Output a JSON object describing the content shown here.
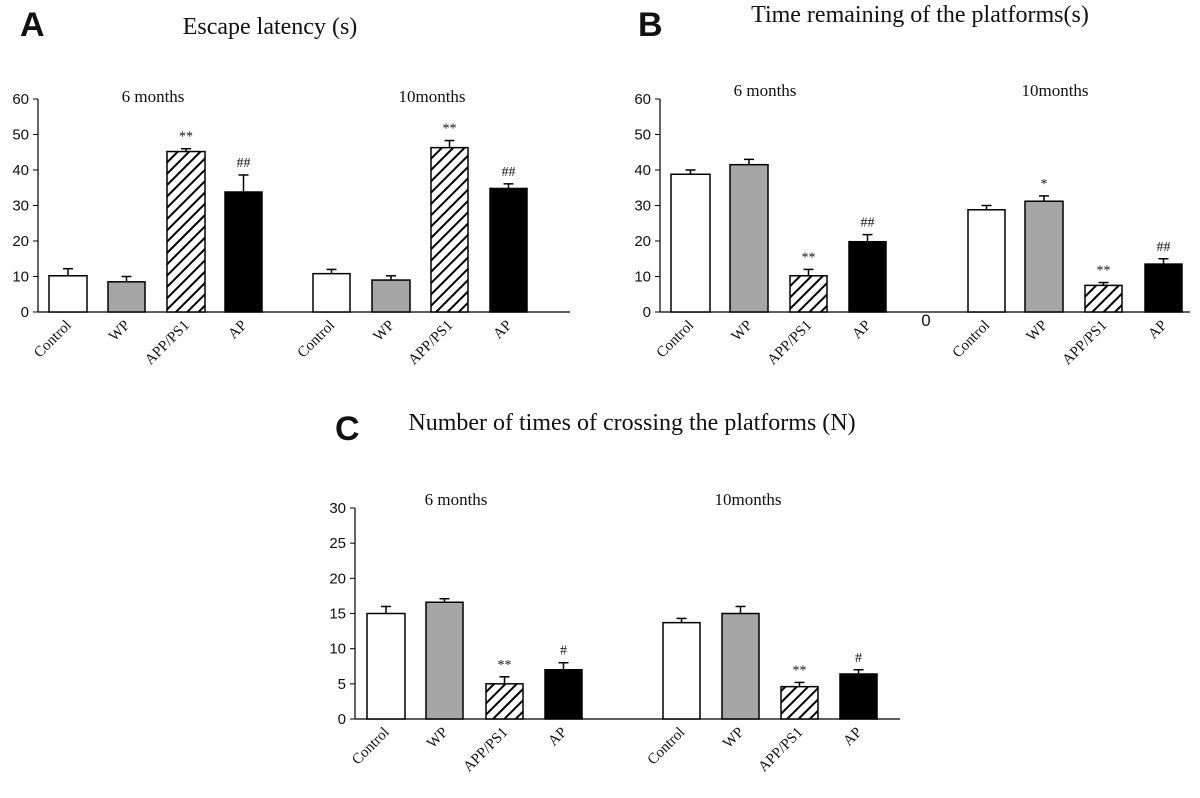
{
  "colors": {
    "control": "#ffffff",
    "wp": "#a6a6a6",
    "app": "hatch",
    "ap": "#000000",
    "axis": "#000000"
  },
  "chart_data": [
    {
      "type": "bar",
      "panel_label": "A",
      "title": "Escape latency (s)",
      "ylim": [
        0,
        60
      ],
      "yticks": [
        0,
        10,
        20,
        30,
        40,
        50,
        60
      ],
      "grid": false,
      "groups": [
        {
          "label": "6 months",
          "categories": [
            "Control",
            "WP",
            "APP/PS1",
            "AP"
          ],
          "values": [
            10.2,
            8.5,
            45.2,
            33.8
          ],
          "errors": [
            2.0,
            1.5,
            0.8,
            4.8
          ],
          "annotations": [
            "",
            "",
            "**",
            "##"
          ]
        },
        {
          "label": "10months",
          "categories": [
            "Control",
            "WP",
            "APP/PS1",
            "AP"
          ],
          "values": [
            10.8,
            9.0,
            46.3,
            34.8
          ],
          "errors": [
            1.2,
            1.2,
            2.0,
            1.3
          ],
          "annotations": [
            "",
            "",
            "**",
            "##"
          ]
        }
      ]
    },
    {
      "type": "bar",
      "panel_label": "B",
      "title": "Time remaining of  the platforms(s)",
      "ylim": [
        0,
        60
      ],
      "yticks": [
        0,
        10,
        20,
        30,
        40,
        50,
        60
      ],
      "grid": false,
      "gap_label": "0",
      "groups": [
        {
          "label": "6 months",
          "categories": [
            "Control",
            "WP",
            "APP/PS1",
            "AP"
          ],
          "values": [
            38.8,
            41.5,
            10.2,
            19.8
          ],
          "errors": [
            1.2,
            1.5,
            1.8,
            2.0
          ],
          "annotations": [
            "",
            "",
            "**",
            "##"
          ]
        },
        {
          "label": "10months",
          "categories": [
            "Control",
            "WP",
            "APP/PS1",
            "AP"
          ],
          "values": [
            28.8,
            31.2,
            7.5,
            13.5
          ],
          "errors": [
            1.2,
            1.5,
            0.8,
            1.5
          ],
          "annotations": [
            "",
            "*",
            "**",
            "##"
          ]
        }
      ]
    },
    {
      "type": "bar",
      "panel_label": "C",
      "title": "Number of times of crossing the platforms (N)",
      "ylim": [
        0,
        30
      ],
      "yticks": [
        0,
        5,
        10,
        15,
        20,
        25,
        30
      ],
      "grid": false,
      "groups": [
        {
          "label": "6 months",
          "categories": [
            "Control",
            "WP",
            "APP/PS1",
            "AP"
          ],
          "values": [
            15.0,
            16.6,
            5.0,
            7.0
          ],
          "errors": [
            1.0,
            0.5,
            1.0,
            1.0
          ],
          "annotations": [
            "",
            "",
            "**",
            "#"
          ]
        },
        {
          "label": "10months",
          "categories": [
            "Control",
            "WP",
            "APP/PS1",
            "AP"
          ],
          "values": [
            13.7,
            15.0,
            4.6,
            6.4
          ],
          "errors": [
            0.6,
            1.0,
            0.6,
            0.6
          ],
          "annotations": [
            "",
            "",
            "**",
            "#"
          ]
        }
      ]
    }
  ]
}
